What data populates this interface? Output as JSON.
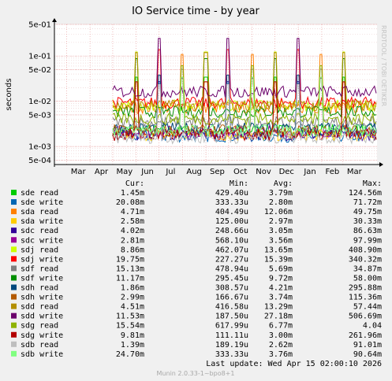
{
  "chart_data": {
    "type": "line",
    "title": "IO Service time - by year",
    "ylabel": "seconds",
    "xlabel": "",
    "y_scale": "log",
    "ylim": [
      0.0004,
      0.5
    ],
    "y_ticks": [
      "5e-04",
      "1e-03",
      "5e-03",
      "1e-02",
      "5e-02",
      "1e-01",
      "5e-01"
    ],
    "y_tick_values": [
      0.0005,
      0.001,
      0.005,
      0.01,
      0.05,
      0.1,
      0.5
    ],
    "x_ticks": [
      "Mar",
      "Apr",
      "May",
      "Jun",
      "Jul",
      "Aug",
      "Sep",
      "Oct",
      "Nov",
      "Dec",
      "Jan",
      "Feb",
      "Mar"
    ],
    "x_tick_dates": [
      "2025-03-01",
      "2025-04-01",
      "2025-05-01",
      "2025-06-01",
      "2025-07-01",
      "2025-08-01",
      "2025-09-01",
      "2025-10-01",
      "2025-11-01",
      "2025-12-01",
      "2026-01-01",
      "2026-02-01",
      "2026-03-01"
    ],
    "xlim": [
      "2025-02-13",
      "2026-04-15"
    ],
    "grid": true,
    "legend_columns": [
      "Cur:",
      "Min:",
      "Avg:",
      "Max:"
    ],
    "series": [
      {
        "name": "sde read",
        "color": "#00cc00",
        "cur": "1.45m",
        "min": "429.40u",
        "avg": "3.79m",
        "max": "124.56m"
      },
      {
        "name": "sde write",
        "color": "#0066b3",
        "cur": "20.08m",
        "min": "333.33u",
        "avg": "2.80m",
        "max": "71.72m"
      },
      {
        "name": "sda read",
        "color": "#ff8000",
        "cur": "4.71m",
        "min": "404.49u",
        "avg": "12.06m",
        "max": "49.75m"
      },
      {
        "name": "sda write",
        "color": "#ffcc00",
        "cur": "2.58m",
        "min": "125.00u",
        "avg": "2.97m",
        "max": "30.33m"
      },
      {
        "name": "sdc read",
        "color": "#330099",
        "cur": "4.02m",
        "min": "248.66u",
        "avg": "3.05m",
        "max": "86.63m"
      },
      {
        "name": "sdc write",
        "color": "#990099",
        "cur": "2.81m",
        "min": "568.10u",
        "avg": "3.56m",
        "max": "97.99m"
      },
      {
        "name": "sdj read",
        "color": "#ccff00",
        "cur": "8.86m",
        "min": "462.07u",
        "avg": "13.65m",
        "max": "408.90m"
      },
      {
        "name": "sdj write",
        "color": "#ff0000",
        "cur": "19.75m",
        "min": "227.27u",
        "avg": "15.39m",
        "max": "340.32m"
      },
      {
        "name": "sdf read",
        "color": "#808080",
        "cur": "15.13m",
        "min": "478.94u",
        "avg": "5.69m",
        "max": "34.87m"
      },
      {
        "name": "sdf write",
        "color": "#008f00",
        "cur": "11.17m",
        "min": "295.45u",
        "avg": "9.72m",
        "max": "58.00m"
      },
      {
        "name": "sdh read",
        "color": "#00487d",
        "cur": "1.86m",
        "min": "308.57u",
        "avg": "4.21m",
        "max": "295.88m"
      },
      {
        "name": "sdh write",
        "color": "#b35a00",
        "cur": "2.99m",
        "min": "166.67u",
        "avg": "3.74m",
        "max": "115.36m"
      },
      {
        "name": "sdd read",
        "color": "#b38f00",
        "cur": "4.51m",
        "min": "416.58u",
        "avg": "13.29m",
        "max": "57.44m"
      },
      {
        "name": "sdd write",
        "color": "#6b006b",
        "cur": "11.53m",
        "min": "187.50u",
        "avg": "27.18m",
        "max": "506.69m"
      },
      {
        "name": "sdg read",
        "color": "#8fb300",
        "cur": "15.54m",
        "min": "617.99u",
        "avg": "6.77m",
        "max": "4.04"
      },
      {
        "name": "sdg write",
        "color": "#b30000",
        "cur": "9.81m",
        "min": "111.11u",
        "avg": "3.00m",
        "max": "261.96m"
      },
      {
        "name": "sdb read",
        "color": "#bebebe",
        "cur": "1.39m",
        "min": "189.19u",
        "avg": "2.62m",
        "max": "91.01m"
      },
      {
        "name": "sdb write",
        "color": "#80ff80",
        "cur": "24.70m",
        "min": "333.33u",
        "avg": "3.76m",
        "max": "90.64m"
      }
    ]
  },
  "footer": {
    "last_update": "Last update:  Wed Apr 15 02:00:10 2026",
    "version": "Munin 2.0.33-1~bpo8+1"
  },
  "side_label": "RRDTOOL / TOBI OETIKER"
}
